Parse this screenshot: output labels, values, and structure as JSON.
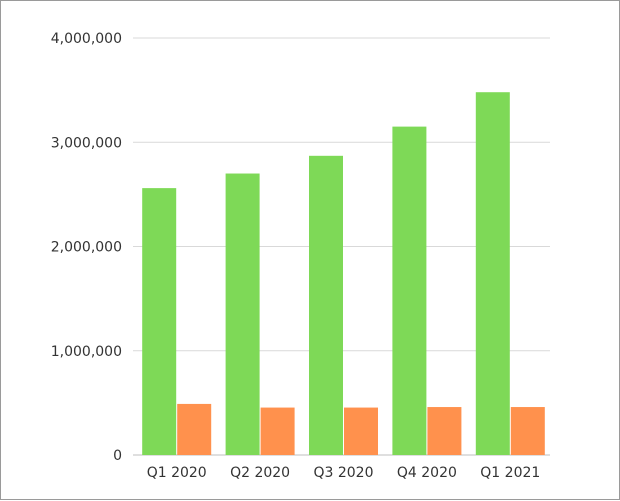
{
  "chart_data": {
    "type": "bar",
    "title": "",
    "xlabel": "",
    "ylabel": "",
    "categories": [
      "Q1 2020",
      "Q2 2020",
      "Q3 2020",
      "Q4 2020",
      "Q1 2021"
    ],
    "series": [
      {
        "color": "#7ed957",
        "values": [
          2560000,
          2700000,
          2870000,
          3150000,
          3480000
        ]
      },
      {
        "color": "#ff914d",
        "values": [
          490000,
          455000,
          455000,
          460000,
          460000
        ]
      }
    ],
    "ylim": [
      0,
      4000000
    ],
    "yticks": [
      0,
      1000000,
      2000000,
      3000000,
      4000000
    ],
    "ytick_labels": [
      "0",
      "1,000,000",
      "2,000,000",
      "3,000,000",
      "4,000,000"
    ],
    "grid": true,
    "legend": "none"
  }
}
